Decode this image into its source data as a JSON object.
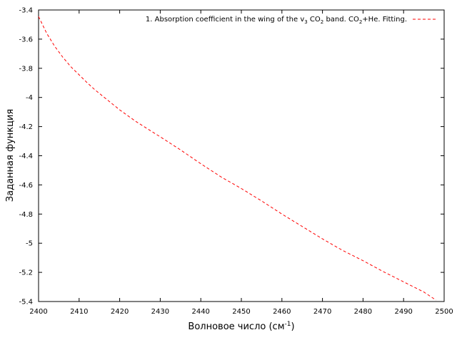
{
  "chart_data": {
    "type": "line",
    "title": "",
    "xlabel": "Волновое число (см",
    "xlabel_sup": "-1",
    "xlabel_suffix": ")",
    "ylabel": "Заданная функция",
    "xlim": [
      2400,
      2500
    ],
    "ylim": [
      -5.4,
      -3.4
    ],
    "x_ticks": [
      2400,
      2410,
      2420,
      2430,
      2440,
      2450,
      2460,
      2470,
      2480,
      2490,
      2500
    ],
    "y_ticks": [
      -3.4,
      -3.6,
      -3.8,
      -4,
      -4.2,
      -4.4,
      -4.6,
      -4.8,
      -5,
      -5.2,
      -5.4
    ],
    "grid": false,
    "legend_position": "top-right",
    "legend": {
      "parts": [
        {
          "text": "1. Absorption coefficient in the wing of the v",
          "kind": "normal"
        },
        {
          "text": "3",
          "kind": "sub"
        },
        {
          "text": " CO",
          "kind": "normal"
        },
        {
          "text": "2",
          "kind": "sub"
        },
        {
          "text": " band. CO",
          "kind": "normal"
        },
        {
          "text": "2",
          "kind": "sub"
        },
        {
          "text": "+He. Fitting.",
          "kind": "normal"
        }
      ]
    },
    "series": [
      {
        "color": "#ff0000",
        "line_style": "dashed",
        "x": [
          2400,
          2402,
          2404,
          2406,
          2408,
          2410,
          2412,
          2414,
          2416,
          2418,
          2420,
          2422,
          2424,
          2426,
          2428,
          2430,
          2435,
          2440,
          2445,
          2450,
          2455,
          2460,
          2465,
          2470,
          2475,
          2480,
          2485,
          2490,
          2495,
          2498
        ],
        "y": [
          -3.445,
          -3.56,
          -3.65,
          -3.725,
          -3.79,
          -3.845,
          -3.9,
          -3.95,
          -3.995,
          -4.04,
          -4.085,
          -4.125,
          -4.165,
          -4.2,
          -4.235,
          -4.27,
          -4.36,
          -4.455,
          -4.545,
          -4.625,
          -4.71,
          -4.8,
          -4.885,
          -4.97,
          -5.05,
          -5.12,
          -5.195,
          -5.265,
          -5.335,
          -5.39
        ]
      }
    ]
  }
}
